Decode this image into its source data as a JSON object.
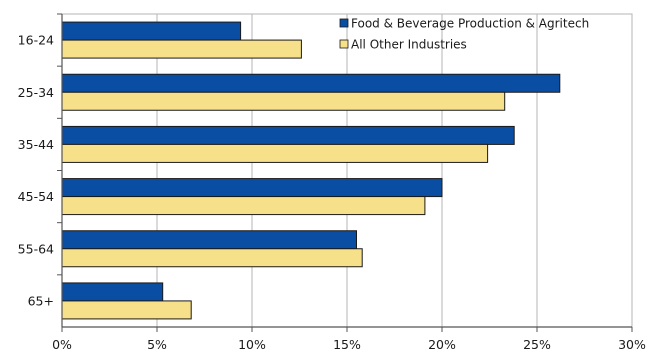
{
  "chart_data": {
    "type": "bar",
    "orientation": "horizontal",
    "title": "",
    "xlabel": "",
    "ylabel": "",
    "categories": [
      "16-24",
      "25-34",
      "35-44",
      "45-54",
      "55-64",
      "65+"
    ],
    "series": [
      {
        "name": "Food & Beverage Production & Agritech",
        "color": "#0a4ea3",
        "values": [
          9.4,
          26.2,
          23.8,
          20.0,
          15.5,
          5.3
        ]
      },
      {
        "name": "All Other Industries",
        "color": "#f7e08a",
        "values": [
          12.6,
          23.3,
          22.4,
          19.1,
          15.8,
          6.8
        ]
      }
    ],
    "xlim": [
      0,
      30
    ],
    "xticks": [
      "0%",
      "5%",
      "10%",
      "15%",
      "20%",
      "25%",
      "30%"
    ],
    "grid": true,
    "legend_position": "top-right"
  }
}
